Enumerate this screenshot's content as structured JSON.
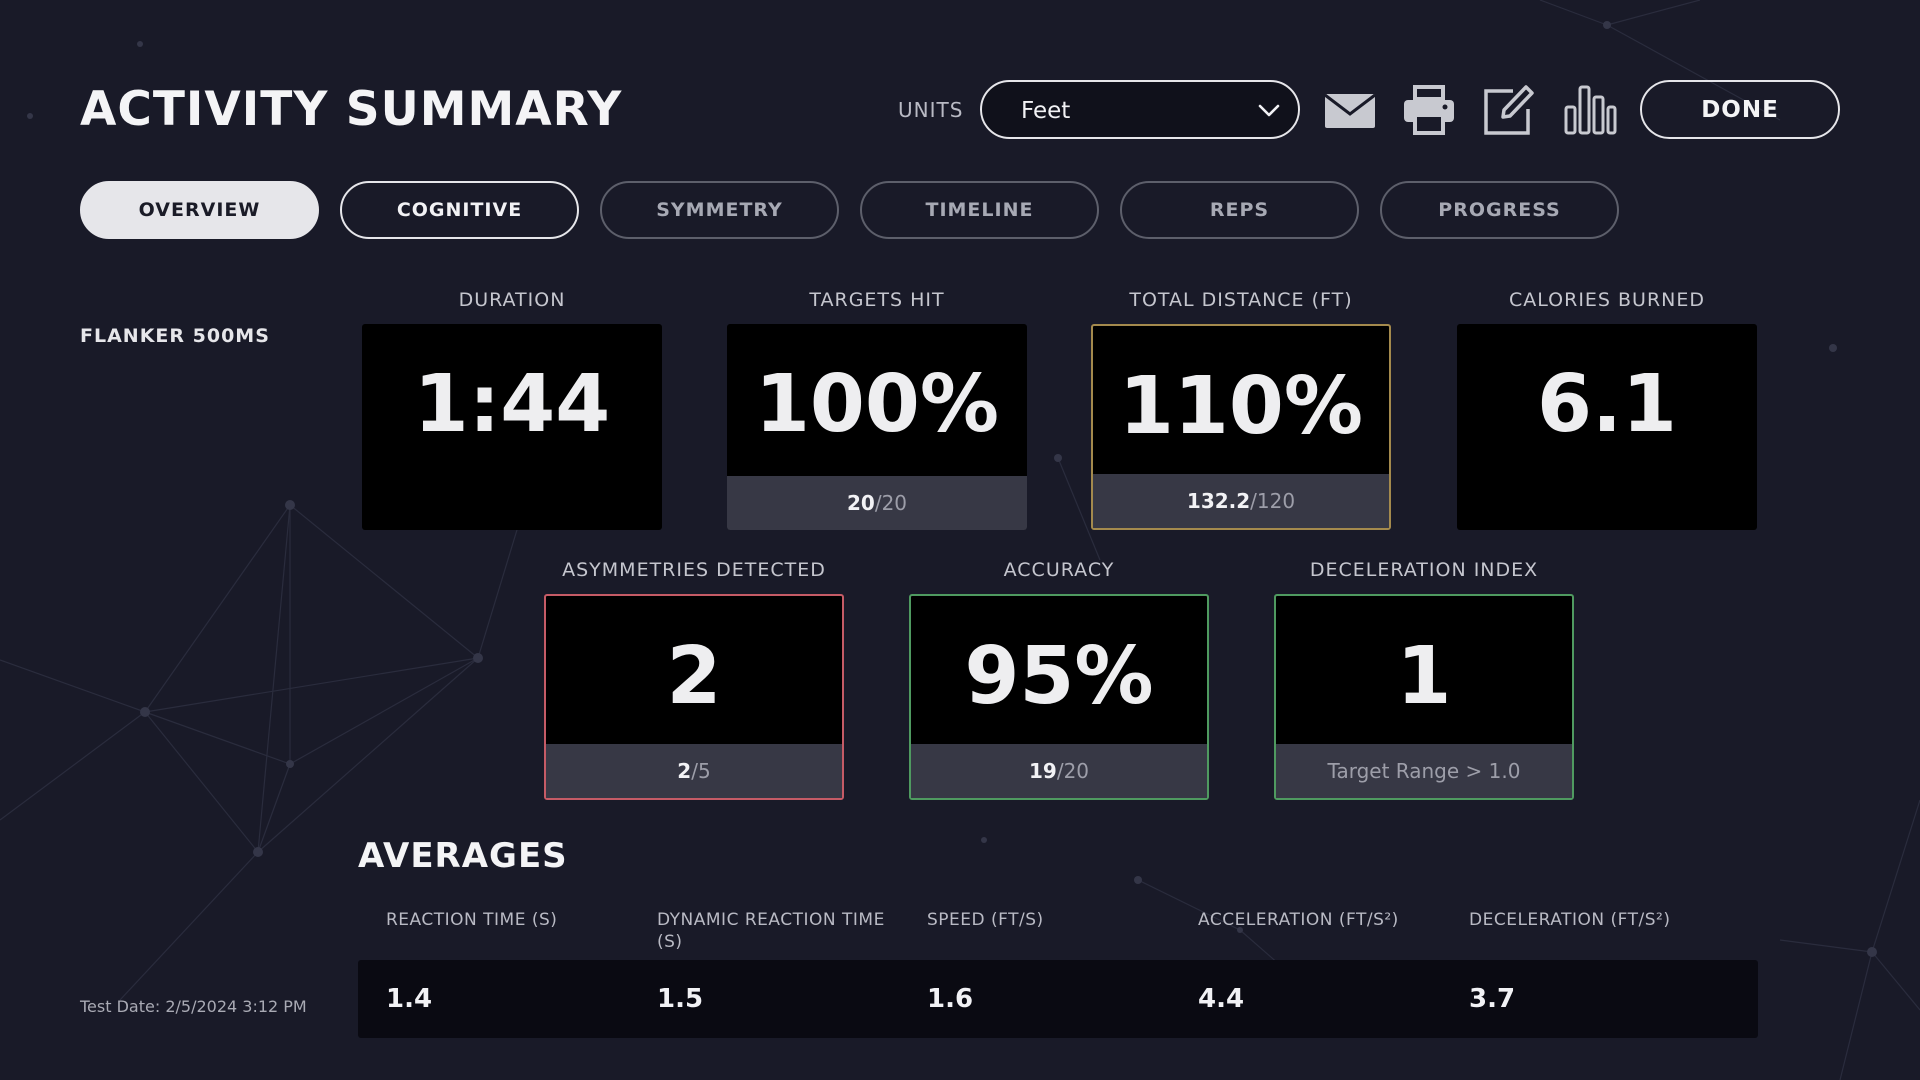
{
  "header": {
    "title": "ACTIVITY SUMMARY",
    "units_label": "UNITS",
    "units_value": "Feet",
    "done_label": "DONE"
  },
  "toolbar_icons": [
    "mail-icon",
    "printer-icon",
    "edit-icon",
    "bar-chart-icon"
  ],
  "tabs": [
    {
      "label": "OVERVIEW",
      "state": "active"
    },
    {
      "label": "COGNITIVE",
      "state": "outlined"
    },
    {
      "label": "SYMMETRY",
      "state": "default"
    },
    {
      "label": "TIMELINE",
      "state": "default"
    },
    {
      "label": "REPS",
      "state": "default"
    },
    {
      "label": "PROGRESS",
      "state": "default"
    }
  ],
  "activity_name": "FLANKER 500MS",
  "stats_row1": [
    {
      "label": "DURATION",
      "value": "1:44"
    },
    {
      "label": "TARGETS HIT",
      "value": "100%",
      "footer_num": "20",
      "footer_rest": "/20"
    },
    {
      "label": "TOTAL DISTANCE (FT)",
      "value": "110%",
      "footer_num": "132.2",
      "footer_rest": "/120",
      "border_color": "#a48a4d"
    },
    {
      "label": "CALORIES BURNED",
      "value": "6.1"
    }
  ],
  "stats_row2": [
    {
      "label": "ASYMMETRIES DETECTED",
      "value": "2",
      "footer_num": "2",
      "footer_rest": "/5",
      "border_color": "#c55b66"
    },
    {
      "label": "ACCURACY",
      "value": "95%",
      "footer_num": "19",
      "footer_rest": "/20",
      "border_color": "#4f9a60"
    },
    {
      "label": "DECELERATION INDEX",
      "value": "1",
      "footer_text": "Target Range > 1.0",
      "border_color": "#4f9a60"
    }
  ],
  "averages": {
    "title": "AVERAGES",
    "columns": [
      {
        "label": "REACTION TIME (S)",
        "value": "1.4"
      },
      {
        "label": "DYNAMIC REACTION TIME (S)",
        "value": "1.5"
      },
      {
        "label": "SPEED (FT/S)",
        "value": "1.6"
      },
      {
        "label": "ACCELERATION (FT/S²)",
        "value": "4.4"
      },
      {
        "label": "DECELERATION (FT/S²)",
        "value": "3.7"
      }
    ]
  },
  "test_date": "Test Date: 2/5/2024 3:12 PM"
}
